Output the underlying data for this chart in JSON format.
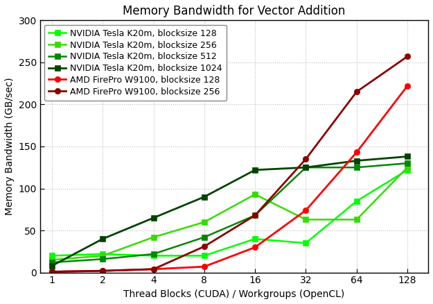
{
  "title": "Memory Bandwidth for Vector Addition",
  "xlabel": "Thread Blocks (CUDA) / Workgroups (OpenCL)",
  "ylabel": "Memory Bandwidth (GB/sec)",
  "x": [
    1,
    2,
    4,
    8,
    16,
    32,
    64,
    128
  ],
  "series": [
    {
      "label": "NVIDIA Tesla K20m, blocksize 128",
      "color": "#00ff00",
      "marker": "s",
      "linewidth": 1.8,
      "y": [
        20,
        22,
        20,
        20,
        40,
        35,
        85,
        122
      ]
    },
    {
      "label": "NVIDIA Tesla K20m, blocksize 256",
      "color": "#33dd00",
      "marker": "s",
      "linewidth": 1.8,
      "y": [
        15,
        20,
        42,
        60,
        93,
        63,
        63,
        125
      ]
    },
    {
      "label": "NVIDIA Tesla K20m, blocksize 512",
      "color": "#008800",
      "marker": "s",
      "linewidth": 1.8,
      "y": [
        12,
        16,
        22,
        42,
        68,
        125,
        125,
        130
      ]
    },
    {
      "label": "NVIDIA Tesla K20m, blocksize 1024",
      "color": "#004400",
      "marker": "s",
      "linewidth": 2.0,
      "y": [
        8,
        40,
        65,
        90,
        122,
        125,
        133,
        138
      ]
    },
    {
      "label": "AMD FirePro W9100, blocksize 128",
      "color": "#ff0000",
      "marker": "o",
      "linewidth": 2.0,
      "y": [
        1,
        2,
        4,
        7,
        30,
        74,
        143,
        222
      ]
    },
    {
      "label": "AMD FirePro W9100, blocksize 256",
      "color": "#8b0000",
      "marker": "o",
      "linewidth": 2.0,
      "y": [
        1,
        2,
        4,
        31,
        68,
        135,
        215,
        257
      ]
    }
  ],
  "ylim": [
    0,
    300
  ],
  "yticks": [
    0,
    50,
    100,
    150,
    200,
    250,
    300
  ],
  "background_color": "#ffffff",
  "plot_bg_color": "#ffffff",
  "grid_color": "#bbbbbb",
  "title_fontsize": 12,
  "label_fontsize": 10,
  "tick_fontsize": 10,
  "legend_fontsize": 9
}
